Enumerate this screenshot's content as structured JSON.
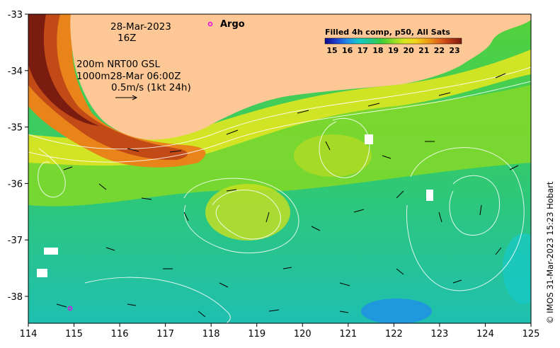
{
  "map": {
    "date_line": "28-Mar-2023",
    "hour_line": "16Z",
    "depth_line": "200m  NRT00 GSL",
    "contour_line": "1000m28-Mar 06:00Z",
    "vector_scale_line": "0.5m/s (1kt 24h)",
    "argo_label": "Argo",
    "credit": "© IMOS 31-Mar-2023 15:23 Hobart",
    "legend": {
      "title": "Filled 4h comp, p50, All Sats",
      "ticks": [
        "15",
        "16",
        "17",
        "18",
        "19",
        "20",
        "21",
        "22",
        "23"
      ],
      "colors": [
        "#0a0a8c",
        "#1f3fd0",
        "#1f8ee8",
        "#17c9c9",
        "#1fc98a",
        "#3fcf3a",
        "#8fdc28",
        "#d9e81f",
        "#f2d21a",
        "#f0a016",
        "#e0661a",
        "#b83616",
        "#7a1c10"
      ]
    },
    "land_color": "#fdc896",
    "lon_ticks": [
      "114",
      "115",
      "116",
      "117",
      "118",
      "119",
      "120",
      "121",
      "122",
      "123",
      "124",
      "125"
    ],
    "lat_ticks": [
      "-33",
      "-34",
      "-35",
      "-36",
      "-37",
      "-38"
    ]
  }
}
